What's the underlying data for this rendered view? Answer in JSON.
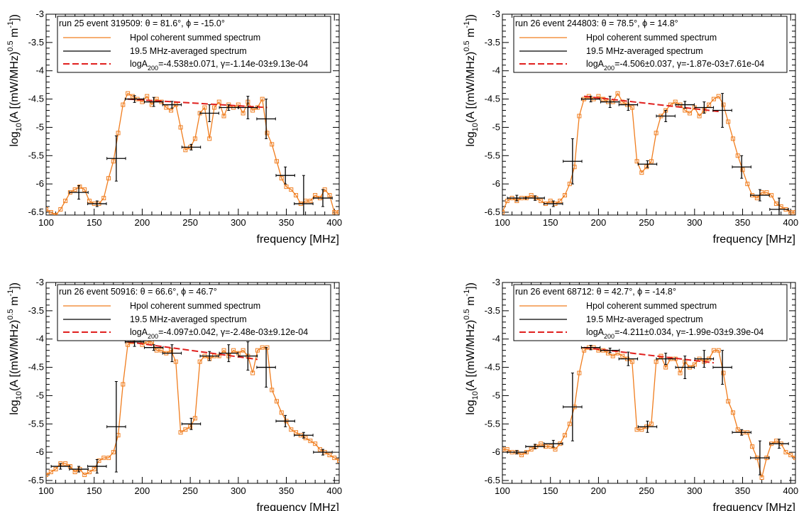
{
  "chart_data": [
    {
      "type": "line",
      "title": "run 25 event 319509: θ = 81.6°, ϕ = -15.0°",
      "xlabel": "frequency [MHz]",
      "ylabel_base": "log",
      "ylabel_sub": "10",
      "ylabel_mid": "(A [(mW/MHz)",
      "ylabel_sup1": "0.5",
      "ylabel_m": " m",
      "ylabel_sup2": "-1",
      "ylabel_end": "])",
      "xlim": [
        100,
        405
      ],
      "ylim": [
        -6.55,
        -3
      ],
      "xticks": [
        "100",
        "150",
        "200",
        "250",
        "300",
        "350",
        "400"
      ],
      "yticks": [
        "-6.5",
        "-6",
        "-5.5",
        "-5",
        "-4.5",
        "-4",
        "-3.5",
        "-3"
      ],
      "legend": {
        "spectrum": "Hpol coherent summed spectrum",
        "averaged": "19.5 MHz-averaged spectrum",
        "fit_prefix": "logA",
        "fit_sub": "200",
        "fit_suffix": "=-4.538±0.071, γ=-1.14e-03±9.13e-04"
      },
      "colors": {
        "spectrum": "#f07d1e",
        "averaged": "#000000",
        "fit": "#e0201e"
      },
      "spectrum": {
        "x": [
          100,
          105,
          110,
          115,
          120,
          125,
          130,
          135,
          140,
          145,
          150,
          155,
          160,
          165,
          170,
          175,
          180,
          185,
          190,
          195,
          200,
          205,
          210,
          215,
          220,
          225,
          230,
          235,
          240,
          245,
          250,
          255,
          260,
          265,
          270,
          275,
          280,
          285,
          290,
          295,
          300,
          305,
          310,
          315,
          320,
          325,
          330,
          335,
          340,
          345,
          350,
          355,
          360,
          365,
          370,
          375,
          380,
          385,
          390,
          395,
          400,
          405
        ],
        "y": [
          -6.45,
          -6.5,
          -6.55,
          -6.45,
          -6.3,
          -6.15,
          -6.1,
          -6.05,
          -6.1,
          -6.3,
          -6.35,
          -6.35,
          -6.25,
          -5.9,
          -5.6,
          -5.1,
          -4.6,
          -4.4,
          -4.45,
          -4.5,
          -4.55,
          -4.45,
          -4.6,
          -4.5,
          -4.55,
          -4.65,
          -4.7,
          -4.6,
          -5.0,
          -5.4,
          -5.35,
          -5.2,
          -4.75,
          -4.65,
          -5.2,
          -4.65,
          -4.55,
          -4.8,
          -4.6,
          -4.65,
          -4.6,
          -4.75,
          -4.55,
          -4.7,
          -4.65,
          -4.5,
          -5.1,
          -5.3,
          -5.6,
          -5.9,
          -6.05,
          -6.1,
          -6.2,
          -6.35,
          -6.3,
          -6.3,
          -6.2,
          -6.25,
          -6.1,
          -6.2,
          -6.5,
          -6.5
        ]
      },
      "averaged": {
        "x": [
          134,
          153,
          173,
          192,
          212,
          231,
          251,
          270,
          290,
          310,
          329,
          349,
          368,
          388
        ],
        "y": [
          -6.15,
          -6.35,
          -5.55,
          -4.5,
          -4.55,
          -4.6,
          -5.35,
          -4.75,
          -4.65,
          -4.65,
          -4.85,
          -5.85,
          -6.35,
          -6.25
        ],
        "yerr": [
          0.12,
          0.05,
          0.4,
          0.06,
          0.08,
          0.06,
          0.05,
          0.15,
          0.05,
          0.2,
          0.35,
          0.15,
          0.5,
          0.15
        ]
      },
      "fit": {
        "x": [
          185,
          330
        ],
        "y": [
          -4.5,
          -4.65
        ]
      }
    },
    {
      "type": "line",
      "title": "run 26 event 244803: θ = 78.5°, ϕ = 14.8°",
      "xlabel": "frequency [MHz]",
      "ylabel_base": "log",
      "ylabel_sub": "10",
      "ylabel_mid": "(A [(mW/MHz)",
      "ylabel_sup1": "0.5",
      "ylabel_m": " m",
      "ylabel_sup2": "-1",
      "ylabel_end": "])",
      "xlim": [
        100,
        405
      ],
      "ylim": [
        -6.55,
        -3
      ],
      "xticks": [
        "100",
        "150",
        "200",
        "250",
        "300",
        "350",
        "400"
      ],
      "yticks": [
        "-6.5",
        "-6",
        "-5.5",
        "-5",
        "-4.5",
        "-4",
        "-3.5",
        "-3"
      ],
      "legend": {
        "spectrum": "Hpol coherent summed spectrum",
        "averaged": "19.5 MHz-averaged spectrum",
        "fit_prefix": "logA",
        "fit_sub": "200",
        "fit_suffix": "=-4.506±0.037, γ=-1.87e-03±7.61e-04"
      },
      "colors": {
        "spectrum": "#f07d1e",
        "averaged": "#000000",
        "fit": "#e0201e"
      },
      "spectrum": {
        "x": [
          100,
          105,
          110,
          115,
          120,
          125,
          130,
          135,
          140,
          145,
          150,
          155,
          160,
          165,
          170,
          175,
          180,
          185,
          190,
          195,
          200,
          205,
          210,
          215,
          220,
          225,
          230,
          235,
          240,
          245,
          250,
          255,
          260,
          265,
          270,
          275,
          280,
          285,
          290,
          295,
          300,
          305,
          310,
          315,
          320,
          325,
          330,
          335,
          340,
          345,
          350,
          355,
          360,
          365,
          370,
          375,
          380,
          385,
          390,
          395,
          400,
          405
        ],
        "y": [
          -6.5,
          -6.3,
          -6.25,
          -6.3,
          -6.25,
          -6.25,
          -6.2,
          -6.25,
          -6.3,
          -6.35,
          -6.3,
          -6.35,
          -6.3,
          -6.2,
          -6.0,
          -5.7,
          -4.8,
          -4.5,
          -4.45,
          -4.5,
          -4.45,
          -4.5,
          -4.55,
          -4.55,
          -4.4,
          -4.55,
          -4.6,
          -4.65,
          -5.6,
          -5.8,
          -5.7,
          -5.6,
          -5.1,
          -4.8,
          -4.7,
          -4.6,
          -4.55,
          -4.6,
          -4.7,
          -4.75,
          -4.65,
          -4.8,
          -4.7,
          -4.6,
          -4.5,
          -4.45,
          -4.6,
          -4.9,
          -5.2,
          -5.5,
          -5.75,
          -6.0,
          -6.2,
          -6.25,
          -6.15,
          -6.15,
          -6.2,
          -6.35,
          -6.4,
          -6.45,
          -6.5,
          -6.5
        ]
      },
      "averaged": {
        "x": [
          115,
          134,
          153,
          173,
          192,
          212,
          231,
          251,
          270,
          290,
          310,
          329,
          349,
          368,
          388
        ],
        "y": [
          -6.25,
          -6.25,
          -6.35,
          -5.6,
          -4.5,
          -4.55,
          -4.6,
          -5.65,
          -4.8,
          -4.6,
          -4.65,
          -4.7,
          -5.7,
          -6.2,
          -6.45
        ],
        "yerr": [
          0.05,
          0.04,
          0.05,
          0.4,
          0.05,
          0.1,
          0.1,
          0.06,
          0.1,
          0.06,
          0.1,
          0.3,
          0.2,
          0.1,
          0.2
        ]
      },
      "fit": {
        "x": [
          185,
          325
        ],
        "y": [
          -4.45,
          -4.72
        ]
      }
    },
    {
      "type": "line",
      "title": "run 26 event 50916: θ = 66.6°, ϕ = 46.7°",
      "xlabel": "frequency [MHz]",
      "ylabel_base": "log",
      "ylabel_sub": "10",
      "ylabel_mid": "(A [(mW/MHz)",
      "ylabel_sup1": "0.5",
      "ylabel_m": " m",
      "ylabel_sup2": "-1",
      "ylabel_end": "])",
      "xlim": [
        100,
        405
      ],
      "ylim": [
        -6.55,
        -3
      ],
      "xticks": [
        "100",
        "150",
        "200",
        "250",
        "300",
        "350",
        "400"
      ],
      "yticks": [
        "-6.5",
        "-6",
        "-5.5",
        "-5",
        "-4.5",
        "-4",
        "-3.5",
        "-3"
      ],
      "legend": {
        "spectrum": "Hpol coherent summed spectrum",
        "averaged": "19.5 MHz-averaged spectrum",
        "fit_prefix": "logA",
        "fit_sub": "200",
        "fit_suffix": "=-4.097±0.042, γ=-2.48e-03±9.12e-04"
      },
      "colors": {
        "spectrum": "#f07d1e",
        "averaged": "#000000",
        "fit": "#e0201e"
      },
      "spectrum": {
        "x": [
          100,
          105,
          110,
          115,
          120,
          125,
          130,
          135,
          140,
          145,
          150,
          155,
          160,
          165,
          170,
          175,
          180,
          185,
          190,
          195,
          200,
          205,
          210,
          215,
          220,
          225,
          230,
          235,
          240,
          245,
          250,
          255,
          260,
          265,
          270,
          275,
          280,
          285,
          290,
          295,
          300,
          305,
          310,
          315,
          320,
          325,
          330,
          335,
          340,
          345,
          350,
          355,
          360,
          365,
          370,
          375,
          380,
          385,
          390,
          395,
          400,
          405
        ],
        "y": [
          -6.4,
          -6.35,
          -6.3,
          -6.2,
          -6.2,
          -6.25,
          -6.35,
          -6.3,
          -6.4,
          -6.35,
          -6.3,
          -6.15,
          -6.1,
          -6.1,
          -6.0,
          -5.7,
          -4.8,
          -4.1,
          -4.05,
          -3.95,
          -4.1,
          -4.05,
          -4.05,
          -4.2,
          -4.2,
          -4.25,
          -4.2,
          -4.4,
          -5.65,
          -5.6,
          -5.55,
          -5.4,
          -4.4,
          -4.3,
          -4.35,
          -4.3,
          -4.3,
          -4.2,
          -4.3,
          -4.2,
          -4.25,
          -4.2,
          -4.3,
          -4.6,
          -4.2,
          -4.15,
          -4.15,
          -4.9,
          -5.1,
          -5.3,
          -5.45,
          -5.6,
          -5.65,
          -5.7,
          -5.75,
          -5.8,
          -5.85,
          -5.95,
          -6.0,
          -6.05,
          -6.1,
          -6.15
        ]
      },
      "averaged": {
        "x": [
          115,
          134,
          153,
          173,
          192,
          212,
          231,
          251,
          270,
          290,
          310,
          329,
          349,
          368,
          388
        ],
        "y": [
          -6.25,
          -6.3,
          -6.25,
          -5.55,
          -4.05,
          -4.15,
          -4.25,
          -5.5,
          -4.3,
          -4.25,
          -4.3,
          -4.5,
          -5.45,
          -5.7,
          -6.0
        ],
        "yerr": [
          0.05,
          0.05,
          0.12,
          0.8,
          0.08,
          0.05,
          0.15,
          0.1,
          0.08,
          0.15,
          0.25,
          0.35,
          0.1,
          0.05,
          0.05
        ]
      },
      "fit": {
        "x": [
          185,
          320
        ],
        "y": [
          -4.05,
          -4.36
        ]
      }
    },
    {
      "type": "line",
      "title": "run 26 event 68712: θ = 42.7°, ϕ = -14.8°",
      "xlabel": "frequency [MHz]",
      "ylabel_base": "log",
      "ylabel_sub": "10",
      "ylabel_mid": "(A [(mW/MHz)",
      "ylabel_sup1": "0.5",
      "ylabel_m": " m",
      "ylabel_sup2": "-1",
      "ylabel_end": "])",
      "xlim": [
        100,
        405
      ],
      "ylim": [
        -6.55,
        -3
      ],
      "xticks": [
        "100",
        "150",
        "200",
        "250",
        "300",
        "350",
        "400"
      ],
      "yticks": [
        "-6.5",
        "-6",
        "-5.5",
        "-5",
        "-4.5",
        "-4",
        "-3.5",
        "-3"
      ],
      "legend": {
        "spectrum": "Hpol coherent summed spectrum",
        "averaged": "19.5 MHz-averaged spectrum",
        "fit_prefix": "logA",
        "fit_sub": "200",
        "fit_suffix": "=-4.211±0.034, γ=-1.99e-03±9.39e-04"
      },
      "colors": {
        "spectrum": "#f07d1e",
        "averaged": "#000000",
        "fit": "#e0201e"
      },
      "spectrum": {
        "x": [
          100,
          105,
          110,
          115,
          120,
          125,
          130,
          135,
          140,
          145,
          150,
          155,
          160,
          165,
          170,
          175,
          180,
          185,
          190,
          195,
          200,
          205,
          210,
          215,
          220,
          225,
          230,
          235,
          240,
          245,
          250,
          255,
          260,
          265,
          270,
          275,
          280,
          285,
          290,
          295,
          300,
          305,
          310,
          315,
          320,
          325,
          330,
          335,
          340,
          345,
          350,
          355,
          360,
          365,
          370,
          375,
          380,
          385,
          390,
          395,
          400,
          405
        ],
        "y": [
          -5.95,
          -5.95,
          -6.0,
          -6.0,
          -6.05,
          -6.0,
          -5.95,
          -5.9,
          -5.85,
          -5.9,
          -5.9,
          -5.95,
          -5.85,
          -5.7,
          -5.5,
          -5.2,
          -4.6,
          -4.2,
          -4.15,
          -4.15,
          -4.2,
          -4.2,
          -4.25,
          -4.3,
          -4.25,
          -4.3,
          -4.35,
          -4.4,
          -5.6,
          -5.6,
          -5.55,
          -5.5,
          -4.4,
          -4.3,
          -4.5,
          -4.35,
          -4.35,
          -4.6,
          -4.4,
          -4.5,
          -4.45,
          -4.35,
          -4.4,
          -4.35,
          -4.2,
          -4.2,
          -4.6,
          -5.1,
          -5.3,
          -5.6,
          -5.65,
          -5.65,
          -5.9,
          -6.1,
          -6.45,
          -6.1,
          -5.85,
          -5.8,
          -5.85,
          -6.0,
          -6.05,
          -6.1
        ]
      },
      "averaged": {
        "x": [
          115,
          134,
          153,
          173,
          192,
          212,
          231,
          251,
          270,
          290,
          310,
          329,
          349,
          368,
          388
        ],
        "y": [
          -6.0,
          -5.9,
          -5.85,
          -5.2,
          -4.15,
          -4.2,
          -4.35,
          -5.55,
          -4.35,
          -4.5,
          -4.35,
          -4.5,
          -5.65,
          -6.1,
          -5.85
        ],
        "yerr": [
          0.03,
          0.04,
          0.06,
          0.6,
          0.04,
          0.04,
          0.12,
          0.1,
          0.1,
          0.2,
          0.15,
          0.3,
          0.05,
          0.3,
          0.08
        ]
      },
      "fit": {
        "x": [
          185,
          320
        ],
        "y": [
          -4.15,
          -4.42
        ]
      }
    }
  ]
}
